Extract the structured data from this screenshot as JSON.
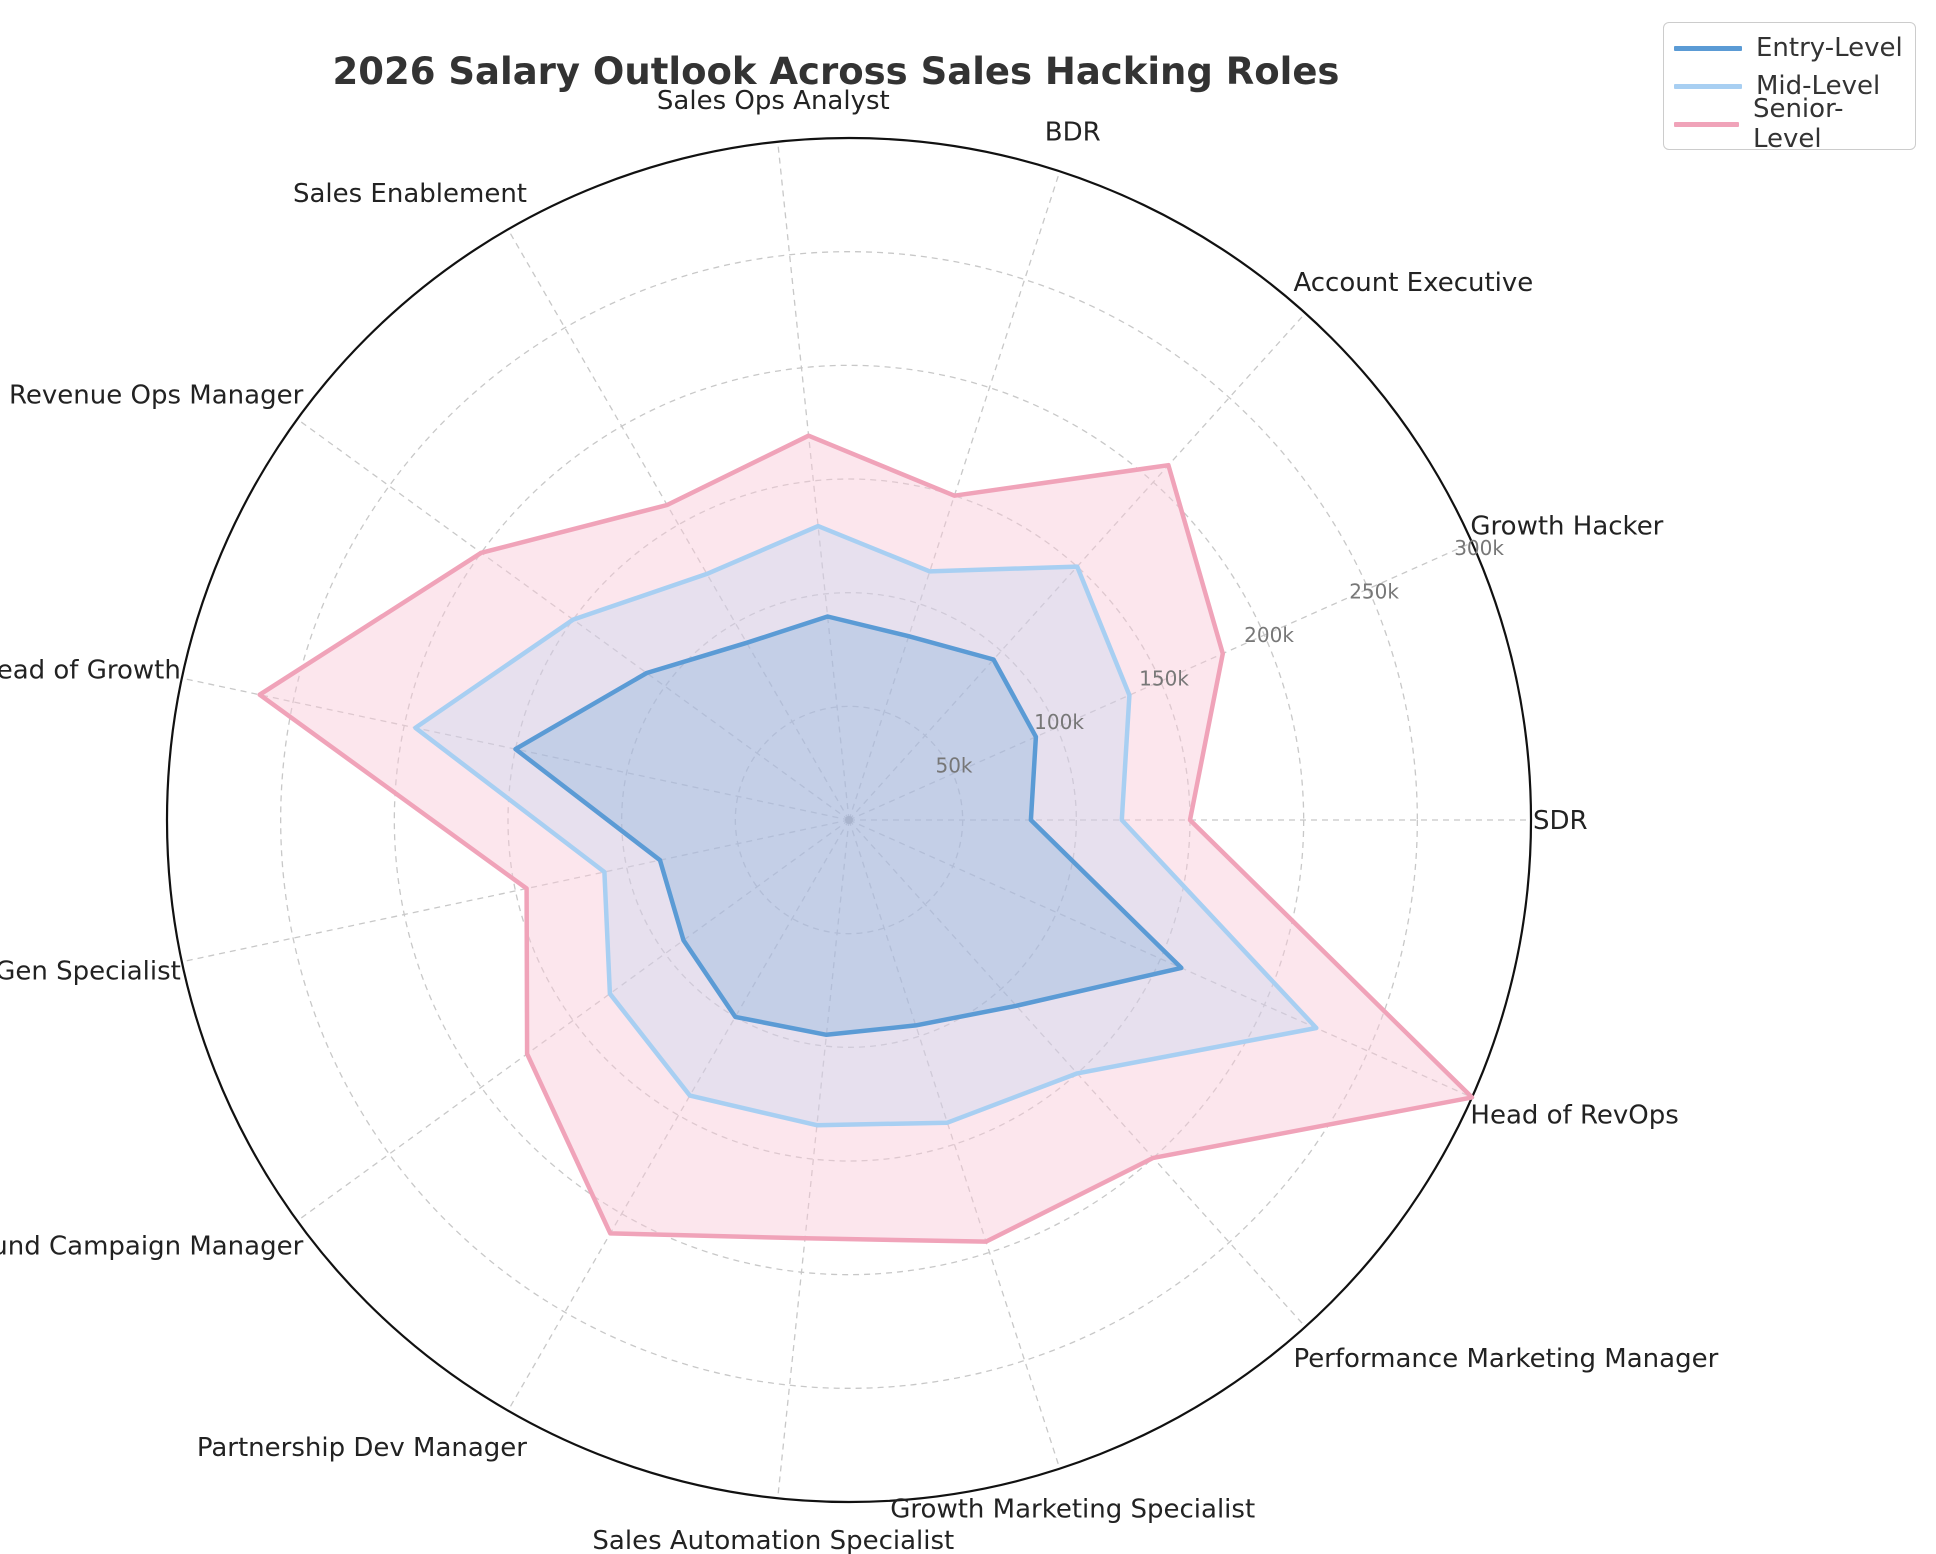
{
  "chart_data": {
    "type": "radar",
    "title": "2026 Salary Outlook Across Sales Hacking Roles",
    "categories": [
      "SDR",
      "Growth Hacker",
      "Account Executive",
      "BDR",
      "Sales Ops Analyst",
      "Sales Enablement",
      "Revenue Ops Manager",
      "Head of Growth",
      "Lead Gen Specialist",
      "Outbound Campaign Manager",
      "Partnership Dev Manager",
      "Sales Automation Specialist",
      "Growth Marketing Specialist",
      "Performance Marketing Manager",
      "Head of RevOps"
    ],
    "series": [
      {
        "name": "Entry-Level",
        "color": "#5b9bd5",
        "fill": "#5b9bd5",
        "values": [
          80,
          90,
          95,
          85,
          90,
          90,
          110,
          150,
          85,
          90,
          100,
          95,
          95,
          110,
          160
        ]
      },
      {
        "name": "Mid-Level",
        "color": "#a8cff2",
        "fill": "#a8cff2",
        "values": [
          120,
          135,
          150,
          115,
          130,
          125,
          150,
          195,
          110,
          130,
          140,
          135,
          140,
          150,
          225
        ]
      },
      {
        "name": "Senior-Level",
        "color": "#f0a3b9",
        "fill": "#f8c8d6",
        "values": [
          150,
          180,
          210,
          150,
          170,
          160,
          200,
          265,
          145,
          175,
          210,
          185,
          195,
          200,
          300
        ]
      }
    ],
    "radial_ticks": [
      50,
      100,
      150,
      200,
      250,
      300
    ],
    "radial_tick_labels": [
      "50k",
      "100k",
      "150k",
      "200k",
      "250k",
      "300k"
    ],
    "rlim": [
      0,
      300
    ],
    "grid": true,
    "legend_position": "top-right"
  }
}
